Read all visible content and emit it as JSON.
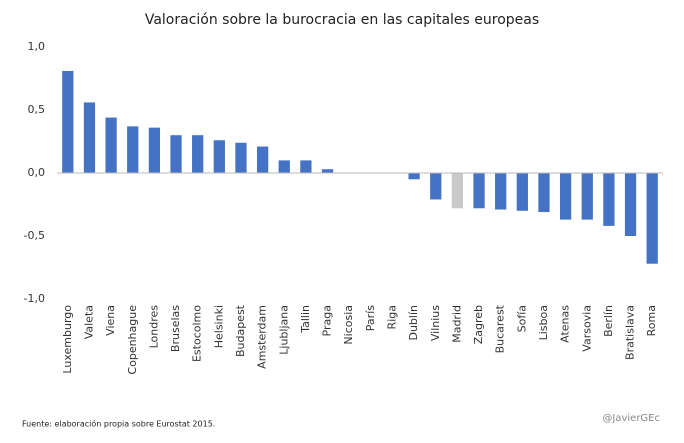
{
  "chart_data": {
    "type": "bar",
    "title": "Valoración sobre la burocracia en las capitales europeas",
    "categories": [
      "Luxemburgo",
      "Valeta",
      "Viena",
      "Copenhague",
      "Londres",
      "Bruselas",
      "Estocolmo",
      "Helsinki",
      "Budapest",
      "Amsterdam",
      "Ljubljana",
      "Tallin",
      "Praga",
      "Nicosia",
      "París",
      "Riga",
      "Dublín",
      "Vilnius",
      "Madrid",
      "Zagreb",
      "Bucarest",
      "Sofía",
      "Lisboa",
      "Atenas",
      "Varsovia",
      "Berlín",
      "Bratislava",
      "Roma"
    ],
    "values": [
      0.81,
      0.56,
      0.44,
      0.37,
      0.36,
      0.3,
      0.3,
      0.26,
      0.24,
      0.21,
      0.1,
      0.1,
      0.03,
      0,
      0,
      0,
      -0.05,
      -0.21,
      -0.28,
      -0.28,
      -0.29,
      -0.3,
      -0.31,
      -0.37,
      -0.37,
      -0.42,
      -0.5,
      -0.72
    ],
    "colors": [
      "#4472c4",
      "#4472c4",
      "#4472c4",
      "#4472c4",
      "#4472c4",
      "#4472c4",
      "#4472c4",
      "#4472c4",
      "#4472c4",
      "#4472c4",
      "#4472c4",
      "#4472c4",
      "#4472c4",
      "#4472c4",
      "#4472c4",
      "#4472c4",
      "#4472c4",
      "#4472c4",
      "#c9c9c9",
      "#4472c4",
      "#4472c4",
      "#4472c4",
      "#4472c4",
      "#4472c4",
      "#4472c4",
      "#4472c4",
      "#4472c4",
      "#4472c4"
    ],
    "ylim": [
      -1,
      1
    ],
    "yticks": [
      {
        "value": -1,
        "label": "-1,0"
      },
      {
        "value": -0.5,
        "label": "-0,5"
      },
      {
        "value": 0,
        "label": "0,0"
      },
      {
        "value": 0.5,
        "label": "0,5"
      },
      {
        "value": 1,
        "label": "1,0"
      }
    ],
    "grid": false
  },
  "footer": {
    "source": "Fuente: elaboración propia sobre Eurostat 2015.",
    "handle": "@JavierGEc"
  }
}
